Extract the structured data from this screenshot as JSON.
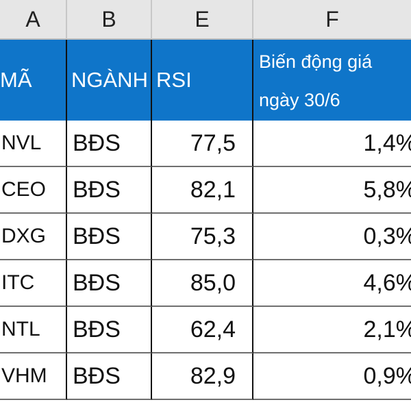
{
  "columns": {
    "a": "A",
    "b": "B",
    "e": "E",
    "f": "F"
  },
  "header": {
    "ma": "MÃ",
    "nganh": "NGÀNH",
    "rsi": "RSI",
    "bien_dong_line1": "Biến động giá",
    "bien_dong_line2": "ngày 30/6"
  },
  "rows": [
    {
      "ma": "NVL",
      "nganh": "BĐS",
      "rsi": "77,5",
      "bien_dong": "1,4%"
    },
    {
      "ma": "CEO",
      "nganh": "BĐS",
      "rsi": "82,1",
      "bien_dong": "5,8%"
    },
    {
      "ma": "DXG",
      "nganh": "BĐS",
      "rsi": "75,3",
      "bien_dong": "0,3%"
    },
    {
      "ma": "ITC",
      "nganh": "BĐS",
      "rsi": "85,0",
      "bien_dong": "4,6%"
    },
    {
      "ma": "NTL",
      "nganh": "BĐS",
      "rsi": "62,4",
      "bien_dong": "2,1%"
    },
    {
      "ma": "VHM",
      "nganh": "BĐS",
      "rsi": "82,9",
      "bien_dong": "0,9%"
    }
  ],
  "colors": {
    "header_bg": "#0f75c9",
    "column_header_bg": "#e6e6e6"
  }
}
